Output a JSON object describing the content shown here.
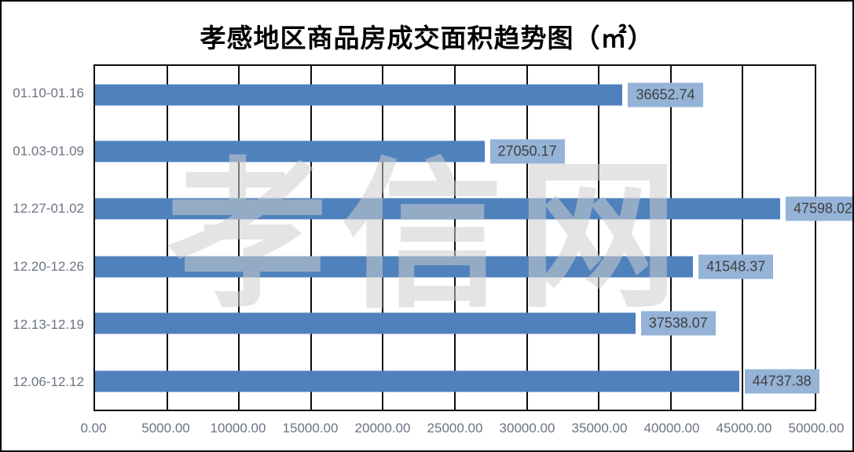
{
  "title": "孝感地区商品房成交面积趋势图（㎡）",
  "watermark": "孝信网",
  "chart_data": {
    "type": "bar",
    "orientation": "horizontal",
    "title": "孝感地区商品房成交面积趋势图（㎡）",
    "categories": [
      "01.10-01.16",
      "01.03-01.09",
      "12.27-01.02",
      "12.20-12.26",
      "12.13-12.19",
      "12.06-12.12"
    ],
    "values": [
      36652.74,
      27050.17,
      47598.02,
      41548.37,
      37538.07,
      44737.38
    ],
    "data_labels": [
      "36652.74",
      "27050.17",
      "47598.02",
      "41548.37",
      "37538.07",
      "44737.38"
    ],
    "x_ticks": [
      "0.00",
      "5000.00",
      "10000.00",
      "15000.00",
      "20000.00",
      "25000.00",
      "30000.00",
      "35000.00",
      "40000.00",
      "45000.00",
      "50000.00"
    ],
    "xlim": [
      0,
      50000
    ],
    "xlabel": "",
    "ylabel": "",
    "grid": "vertical-only",
    "legend": "none",
    "colors": {
      "bar": "#4f81bd",
      "label_bg": "#95b3d7",
      "label_text": "#3f3f3f",
      "axis_text": "#6c7383",
      "gridline": "#0d0d0d"
    }
  }
}
